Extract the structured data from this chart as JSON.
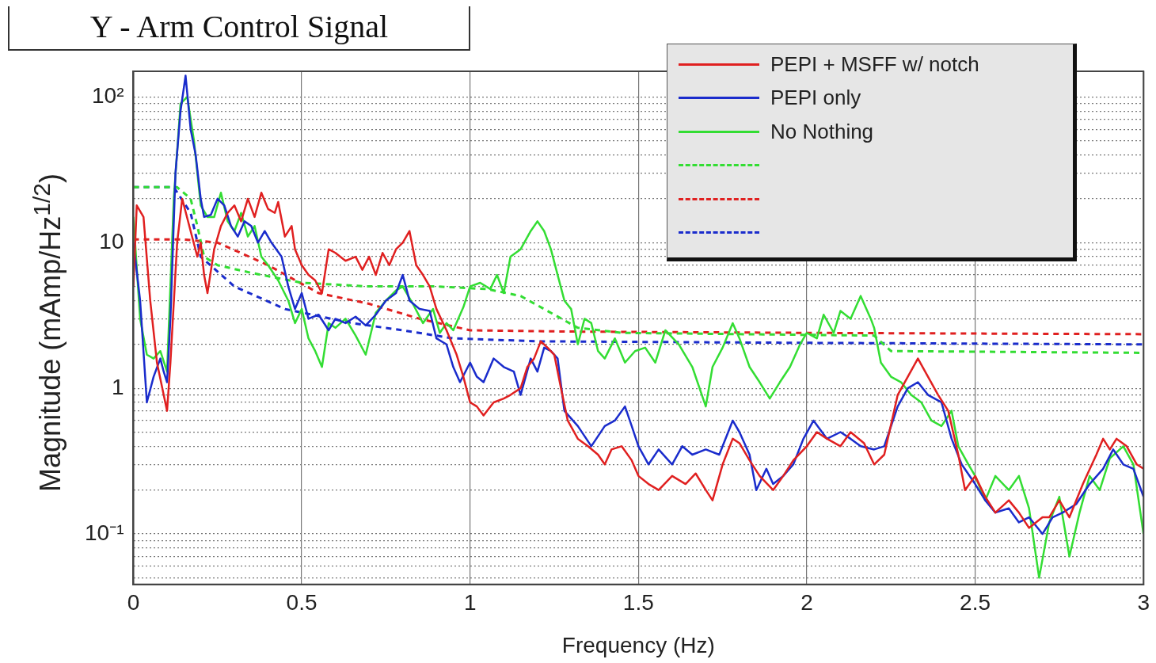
{
  "chart_data": {
    "type": "line",
    "title": "Y - Arm Control Signal",
    "xlabel": "Frequency (Hz)",
    "ylabel": "Magnitude (mAmp/Hz$^{1/2}$)",
    "log": "y",
    "grid": true,
    "legend": "top right",
    "marker": "none",
    "xlim": [
      0,
      3
    ],
    "xticks": [
      0,
      0.5,
      1,
      1.5,
      2,
      2.5,
      3
    ],
    "ylim": [
      0.045,
      150
    ],
    "yticks": [
      {
        "value": 0.05,
        "label": null
      },
      {
        "value": 0.06,
        "label": null
      },
      {
        "value": 0.07,
        "label": null
      },
      {
        "value": 0.08,
        "label": null
      },
      {
        "value": 0.09,
        "label": null
      },
      {
        "value": 0.1,
        "label": "10⁻¹"
      },
      {
        "value": 0.2,
        "label": null
      },
      {
        "value": 0.3,
        "label": null
      },
      {
        "value": 0.4,
        "label": null
      },
      {
        "value": 0.5,
        "label": null
      },
      {
        "value": 0.6,
        "label": null
      },
      {
        "value": 0.7,
        "label": null
      },
      {
        "value": 0.8,
        "label": null
      },
      {
        "value": 0.9,
        "label": null
      },
      1,
      {
        "value": 2,
        "label": null
      },
      {
        "value": 3,
        "label": null
      },
      {
        "value": 4,
        "label": null
      },
      {
        "value": 5,
        "label": null
      },
      {
        "value": 6,
        "label": null
      },
      {
        "value": 7,
        "label": null
      },
      {
        "value": 8,
        "label": null
      },
      {
        "value": 9,
        "label": null
      },
      10,
      {
        "value": 20,
        "label": null
      },
      {
        "value": 30,
        "label": null
      },
      {
        "value": 40,
        "label": null
      },
      {
        "value": 50,
        "label": null
      },
      {
        "value": 60,
        "label": null
      },
      {
        "value": 70,
        "label": null
      },
      {
        "value": 80,
        "label": null
      },
      {
        "value": 90,
        "label": null
      },
      {
        "value": 100,
        "label": "10²"
      }
    ],
    "series": [
      {
        "name": "PEPI + MSFF w/ notch",
        "color": "#e02020",
        "line_style": "solid",
        "x": [
          0,
          0.01,
          0.03,
          0.05,
          0.07,
          0.09,
          0.1,
          0.11,
          0.13,
          0.145,
          0.17,
          0.19,
          0.2,
          0.21,
          0.22,
          0.24,
          0.26,
          0.28,
          0.3,
          0.32,
          0.34,
          0.36,
          0.38,
          0.4,
          0.42,
          0.43,
          0.45,
          0.47,
          0.48,
          0.5,
          0.52,
          0.54,
          0.56,
          0.58,
          0.6,
          0.63,
          0.66,
          0.68,
          0.7,
          0.72,
          0.74,
          0.76,
          0.78,
          0.8,
          0.82,
          0.84,
          0.86,
          0.88,
          0.9,
          0.93,
          0.96,
          0.98,
          1.0,
          1.02,
          1.04,
          1.07,
          1.1,
          1.12,
          1.15,
          1.17,
          1.19,
          1.21,
          1.23,
          1.25,
          1.27,
          1.29,
          1.32,
          1.35,
          1.38,
          1.4,
          1.42,
          1.45,
          1.48,
          1.5,
          1.53,
          1.56,
          1.6,
          1.64,
          1.67,
          1.7,
          1.72,
          1.75,
          1.78,
          1.8,
          1.83,
          1.86,
          1.9,
          1.93,
          1.96,
          2.0,
          2.03,
          2.06,
          2.1,
          2.13,
          2.17,
          2.2,
          2.23,
          2.27,
          2.3,
          2.33,
          2.36,
          2.39,
          2.42,
          2.45,
          2.47,
          2.5,
          2.53,
          2.56,
          2.6,
          2.63,
          2.66,
          2.7,
          2.72,
          2.75,
          2.78,
          2.82,
          2.86,
          2.88,
          2.9,
          2.92,
          2.95,
          2.98,
          3.0
        ],
        "values": [
          5,
          18,
          15,
          4,
          1.5,
          0.9,
          0.7,
          1.5,
          10,
          20,
          12,
          8,
          10,
          6,
          4.5,
          9,
          13,
          16,
          18,
          14,
          20,
          15,
          22,
          17,
          16,
          19,
          11,
          13,
          9,
          7,
          6,
          5.5,
          4.5,
          9,
          8.5,
          7.5,
          8,
          6.5,
          8,
          6,
          8.5,
          7,
          9,
          10,
          12,
          7,
          6,
          5,
          3.5,
          2.5,
          1.7,
          1.2,
          0.8,
          0.75,
          0.65,
          0.8,
          0.85,
          0.9,
          1.0,
          1.4,
          1.6,
          2.1,
          1.9,
          1.7,
          1.0,
          0.6,
          0.45,
          0.4,
          0.35,
          0.3,
          0.38,
          0.4,
          0.32,
          0.25,
          0.22,
          0.2,
          0.25,
          0.22,
          0.26,
          0.2,
          0.17,
          0.3,
          0.45,
          0.42,
          0.32,
          0.25,
          0.2,
          0.25,
          0.32,
          0.4,
          0.5,
          0.45,
          0.4,
          0.5,
          0.42,
          0.3,
          0.35,
          0.9,
          1.2,
          1.6,
          1.2,
          0.9,
          0.7,
          0.35,
          0.2,
          0.25,
          0.18,
          0.14,
          0.17,
          0.14,
          0.11,
          0.13,
          0.13,
          0.17,
          0.13,
          0.22,
          0.35,
          0.45,
          0.38,
          0.45,
          0.4,
          0.3,
          0.28
        ]
      },
      {
        "name": "PEPI only",
        "color": "#1a2ccc",
        "line_style": "solid",
        "x": [
          0,
          0.02,
          0.04,
          0.06,
          0.08,
          0.09,
          0.1,
          0.11,
          0.125,
          0.14,
          0.155,
          0.17,
          0.185,
          0.2,
          0.21,
          0.23,
          0.25,
          0.27,
          0.29,
          0.31,
          0.33,
          0.35,
          0.37,
          0.39,
          0.41,
          0.44,
          0.46,
          0.48,
          0.5,
          0.52,
          0.55,
          0.58,
          0.6,
          0.63,
          0.66,
          0.69,
          0.72,
          0.75,
          0.78,
          0.8,
          0.82,
          0.85,
          0.88,
          0.9,
          0.93,
          0.95,
          0.97,
          1.0,
          1.02,
          1.04,
          1.07,
          1.1,
          1.13,
          1.15,
          1.18,
          1.2,
          1.22,
          1.24,
          1.26,
          1.28,
          1.32,
          1.36,
          1.4,
          1.43,
          1.46,
          1.48,
          1.5,
          1.53,
          1.56,
          1.6,
          1.63,
          1.66,
          1.7,
          1.74,
          1.78,
          1.8,
          1.83,
          1.85,
          1.88,
          1.9,
          1.93,
          1.96,
          1.99,
          2.02,
          2.06,
          2.1,
          2.13,
          2.16,
          2.2,
          2.23,
          2.27,
          2.3,
          2.33,
          2.36,
          2.4,
          2.43,
          2.46,
          2.5,
          2.53,
          2.56,
          2.6,
          2.63,
          2.66,
          2.7,
          2.73,
          2.76,
          2.8,
          2.84,
          2.88,
          2.91,
          2.94,
          2.97,
          3.0
        ],
        "values": [
          10,
          4,
          0.8,
          1.2,
          1.6,
          1.3,
          1.1,
          3,
          30,
          80,
          140,
          60,
          40,
          20,
          15,
          15.5,
          20,
          18,
          13,
          11,
          14,
          13,
          10,
          12,
          10,
          8,
          5,
          3.5,
          4.5,
          3,
          3.2,
          2.5,
          3,
          2.8,
          3.1,
          2.7,
          3.2,
          4,
          4.5,
          6,
          4,
          3.5,
          3.4,
          2.2,
          2.0,
          1.4,
          1.1,
          1.5,
          1.2,
          1.1,
          1.6,
          1.4,
          1.3,
          0.9,
          1.6,
          1.3,
          1.9,
          1.8,
          1.6,
          0.7,
          0.55,
          0.4,
          0.55,
          0.6,
          0.75,
          0.55,
          0.4,
          0.3,
          0.38,
          0.3,
          0.4,
          0.35,
          0.38,
          0.35,
          0.6,
          0.5,
          0.35,
          0.2,
          0.28,
          0.22,
          0.25,
          0.3,
          0.45,
          0.6,
          0.45,
          0.5,
          0.45,
          0.4,
          0.38,
          0.4,
          0.75,
          1.0,
          1.1,
          0.9,
          0.8,
          0.45,
          0.3,
          0.22,
          0.17,
          0.14,
          0.15,
          0.12,
          0.13,
          0.1,
          0.13,
          0.14,
          0.16,
          0.22,
          0.28,
          0.38,
          0.3,
          0.28,
          0.18
        ]
      },
      {
        "name": "No Nothing",
        "color": "#33dd33",
        "line_style": "solid",
        "x": [
          0,
          0.02,
          0.04,
          0.06,
          0.08,
          0.1,
          0.12,
          0.14,
          0.16,
          0.18,
          0.2,
          0.22,
          0.24,
          0.26,
          0.28,
          0.3,
          0.32,
          0.34,
          0.36,
          0.38,
          0.4,
          0.43,
          0.46,
          0.48,
          0.5,
          0.52,
          0.54,
          0.56,
          0.58,
          0.6,
          0.63,
          0.66,
          0.69,
          0.72,
          0.75,
          0.78,
          0.8,
          0.83,
          0.86,
          0.89,
          0.91,
          0.93,
          0.95,
          0.98,
          1.0,
          1.03,
          1.06,
          1.08,
          1.1,
          1.12,
          1.15,
          1.18,
          1.2,
          1.22,
          1.24,
          1.26,
          1.28,
          1.3,
          1.32,
          1.34,
          1.36,
          1.38,
          1.4,
          1.43,
          1.46,
          1.49,
          1.52,
          1.55,
          1.58,
          1.62,
          1.66,
          1.7,
          1.72,
          1.75,
          1.78,
          1.8,
          1.83,
          1.86,
          1.89,
          1.92,
          1.95,
          1.98,
          2.0,
          2.03,
          2.05,
          2.08,
          2.1,
          2.13,
          2.16,
          2.19,
          2.2,
          2.22,
          2.25,
          2.28,
          2.31,
          2.34,
          2.37,
          2.4,
          2.43,
          2.45,
          2.48,
          2.5,
          2.53,
          2.56,
          2.6,
          2.63,
          2.66,
          2.69,
          2.72,
          2.75,
          2.78,
          2.81,
          2.84,
          2.87,
          2.9,
          2.94,
          2.97,
          3.0
        ],
        "values": [
          15,
          3,
          1.7,
          1.6,
          1.8,
          1.3,
          20,
          90,
          100,
          50,
          18,
          15,
          15,
          22,
          14,
          12,
          16,
          11,
          13,
          8,
          7,
          5.5,
          4,
          2.8,
          3.5,
          2.2,
          1.8,
          1.4,
          2.8,
          2.6,
          3,
          2.3,
          1.7,
          3.3,
          4,
          4.7,
          5,
          3.8,
          2.8,
          3.5,
          2.4,
          2.8,
          2.5,
          3.6,
          5,
          5.3,
          4.8,
          6,
          4.5,
          8,
          9,
          12,
          14,
          12,
          9,
          6,
          4,
          3.5,
          2,
          3,
          2.8,
          1.8,
          1.6,
          2.2,
          1.5,
          1.8,
          1.9,
          1.5,
          2.5,
          2,
          1.4,
          0.75,
          1.4,
          1.9,
          2.8,
          2.2,
          1.4,
          1.1,
          0.85,
          1.1,
          1.4,
          2,
          2.4,
          2.2,
          3.2,
          2.4,
          3.4,
          3,
          4.3,
          3,
          2.6,
          1.5,
          1.2,
          1.1,
          0.9,
          0.8,
          0.6,
          0.55,
          0.7,
          0.4,
          0.3,
          0.25,
          0.17,
          0.25,
          0.2,
          0.25,
          0.15,
          0.05,
          0.12,
          0.18,
          0.07,
          0.14,
          0.25,
          0.2,
          0.33,
          0.4,
          0.3,
          0.1
        ]
      },
      {
        "color": "#33dd33",
        "line_style": "dashed",
        "x": [
          0,
          0.13,
          0.17,
          0.19,
          0.21,
          0.25,
          0.35,
          0.5,
          0.7,
          0.9,
          1.05,
          1.15,
          1.25,
          1.32,
          1.45,
          2.2,
          2.25,
          3.0
        ],
        "values": [
          24,
          24,
          20,
          13,
          8,
          7,
          6.2,
          5.3,
          5,
          5,
          4.8,
          4.3,
          3.2,
          2.6,
          2.4,
          2.3,
          1.8,
          1.75
        ]
      },
      {
        "color": "#e02020",
        "line_style": "dashed",
        "x": [
          0,
          0.15,
          0.25,
          0.4,
          0.55,
          0.7,
          0.85,
          1.0,
          1.3,
          2.0,
          3.0
        ],
        "values": [
          10.5,
          10.5,
          10,
          7,
          4.5,
          3.8,
          3,
          2.5,
          2.45,
          2.4,
          2.35
        ]
      },
      {
        "color": "#1a2ccc",
        "line_style": "dashed",
        "x": [
          0,
          0.12,
          0.17,
          0.2,
          0.3,
          0.45,
          0.65,
          0.8,
          0.95,
          1.2,
          2.0,
          3.0
        ],
        "values": [
          24,
          24,
          16,
          8,
          5,
          3.5,
          2.8,
          2.5,
          2.2,
          2.1,
          2.05,
          2.0
        ]
      }
    ]
  }
}
